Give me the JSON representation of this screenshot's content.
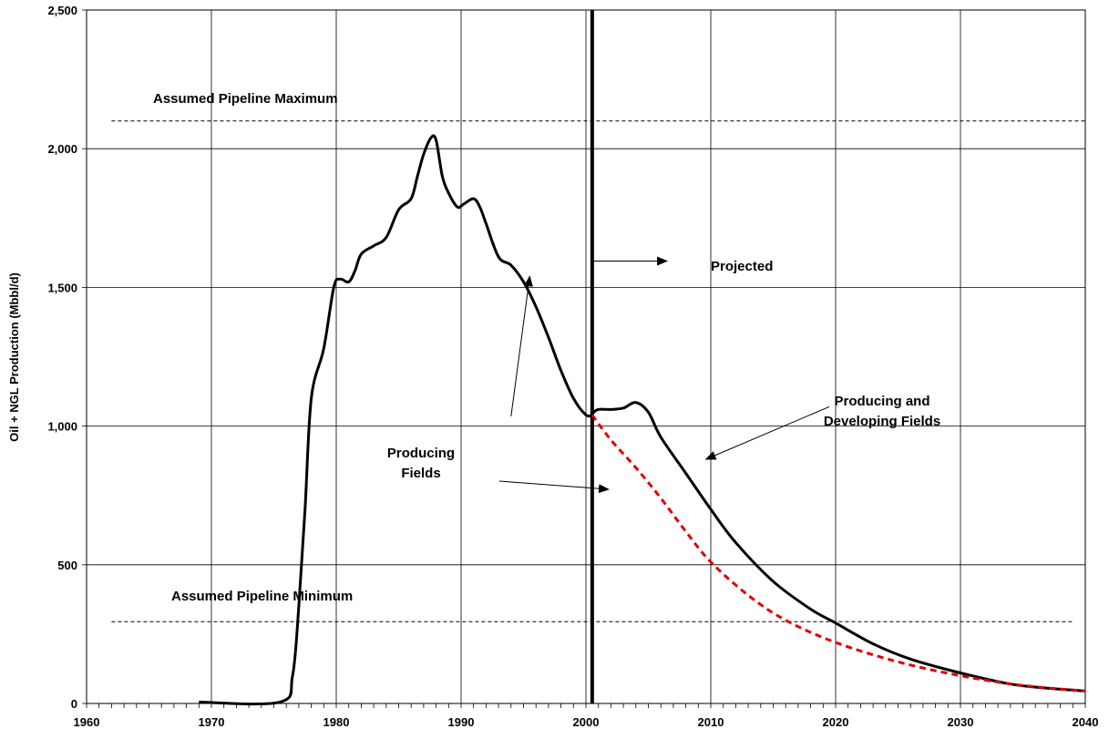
{
  "chart_data": {
    "type": "line",
    "title": "",
    "xlabel": "",
    "ylabel": "Oil + NGL Production (Mbbl/d)",
    "xlim": [
      1960,
      2040
    ],
    "ylim": [
      0,
      2500
    ],
    "x_ticks": [
      1960,
      1970,
      1980,
      1990,
      2000,
      2010,
      2020,
      2030,
      2040
    ],
    "x_tick_labels": [
      "1960",
      "1970",
      "1980",
      "1990",
      "2000",
      "2010",
      "2020",
      "2030",
      "2040"
    ],
    "y_ticks": [
      0,
      500,
      1000,
      1500,
      2000,
      2500
    ],
    "y_tick_labels": [
      "0",
      "500",
      "1,000",
      "1,500",
      "2,000",
      "2,500"
    ],
    "grid": true,
    "series": [
      {
        "color": "#000000",
        "style": "solid",
        "x": [
          1969.0,
          1975.5,
          1976.5,
          1977.0,
          1977.5,
          1978.0,
          1979.0,
          1979.8,
          1980.3,
          1981.0,
          1981.5,
          1982.0,
          1983.0,
          1984.0,
          1985.0,
          1986.0,
          1986.5,
          1987.0,
          1987.6,
          1988.0,
          1988.5,
          1989.0,
          1989.7,
          1990.2,
          1991.0,
          1991.5,
          1992.0,
          1993.0,
          1994.0,
          1995.0,
          1996.0,
          1997.0,
          1998.0,
          1999.0,
          2000.0,
          2000.5
        ],
        "y": [
          5,
          5,
          100,
          350,
          700,
          1100,
          1280,
          1500,
          1530,
          1520,
          1560,
          1620,
          1650,
          1680,
          1780,
          1820,
          1900,
          1980,
          2040,
          2030,
          1900,
          1840,
          1790,
          1800,
          1820,
          1790,
          1730,
          1610,
          1580,
          1520,
          1430,
          1320,
          1200,
          1100,
          1040,
          1040
        ]
      },
      {
        "color": "#000000",
        "style": "solid",
        "x": [
          2000.5,
          2001.0,
          2002.0,
          2003.0,
          2004.0,
          2005.0,
          2006.0,
          2008.0,
          2010.0,
          2012.0,
          2015.0,
          2018.0,
          2020.0,
          2023.0,
          2026.0,
          2030.0,
          2034.0,
          2037.0,
          2040.0
        ],
        "y": [
          1045,
          1060,
          1060,
          1065,
          1085,
          1050,
          960,
          830,
          700,
          580,
          440,
          340,
          290,
          215,
          160,
          110,
          70,
          55,
          45
        ]
      },
      {
        "color": "#e00000",
        "style": "dashed",
        "x": [
          2000.5,
          2002.0,
          2004.0,
          2006.0,
          2008.0,
          2010.0,
          2013.0,
          2016.0,
          2020.0,
          2025.0,
          2030.0,
          2035.0,
          2040.0
        ],
        "y": [
          1040,
          950,
          850,
          740,
          620,
          510,
          390,
          300,
          220,
          150,
          100,
          65,
          45
        ]
      }
    ],
    "reference_lines": [
      {
        "axis": "y",
        "value": 2100,
        "label": "Assumed Pipeline Maximum",
        "style": "dashed",
        "x_from": 1962,
        "x_to": 2040
      },
      {
        "axis": "y",
        "value": 295,
        "label": "Assumed Pipeline Minimum",
        "style": "dashed",
        "x_from": 1962,
        "x_to": 2039
      },
      {
        "axis": "x",
        "value": 2000.5,
        "label": "",
        "style": "solid-thick"
      }
    ],
    "annotations": [
      {
        "text": "Projected"
      },
      {
        "text": "Producing\nFields"
      },
      {
        "text": "Producing and\nDeveloping Fields"
      }
    ]
  }
}
